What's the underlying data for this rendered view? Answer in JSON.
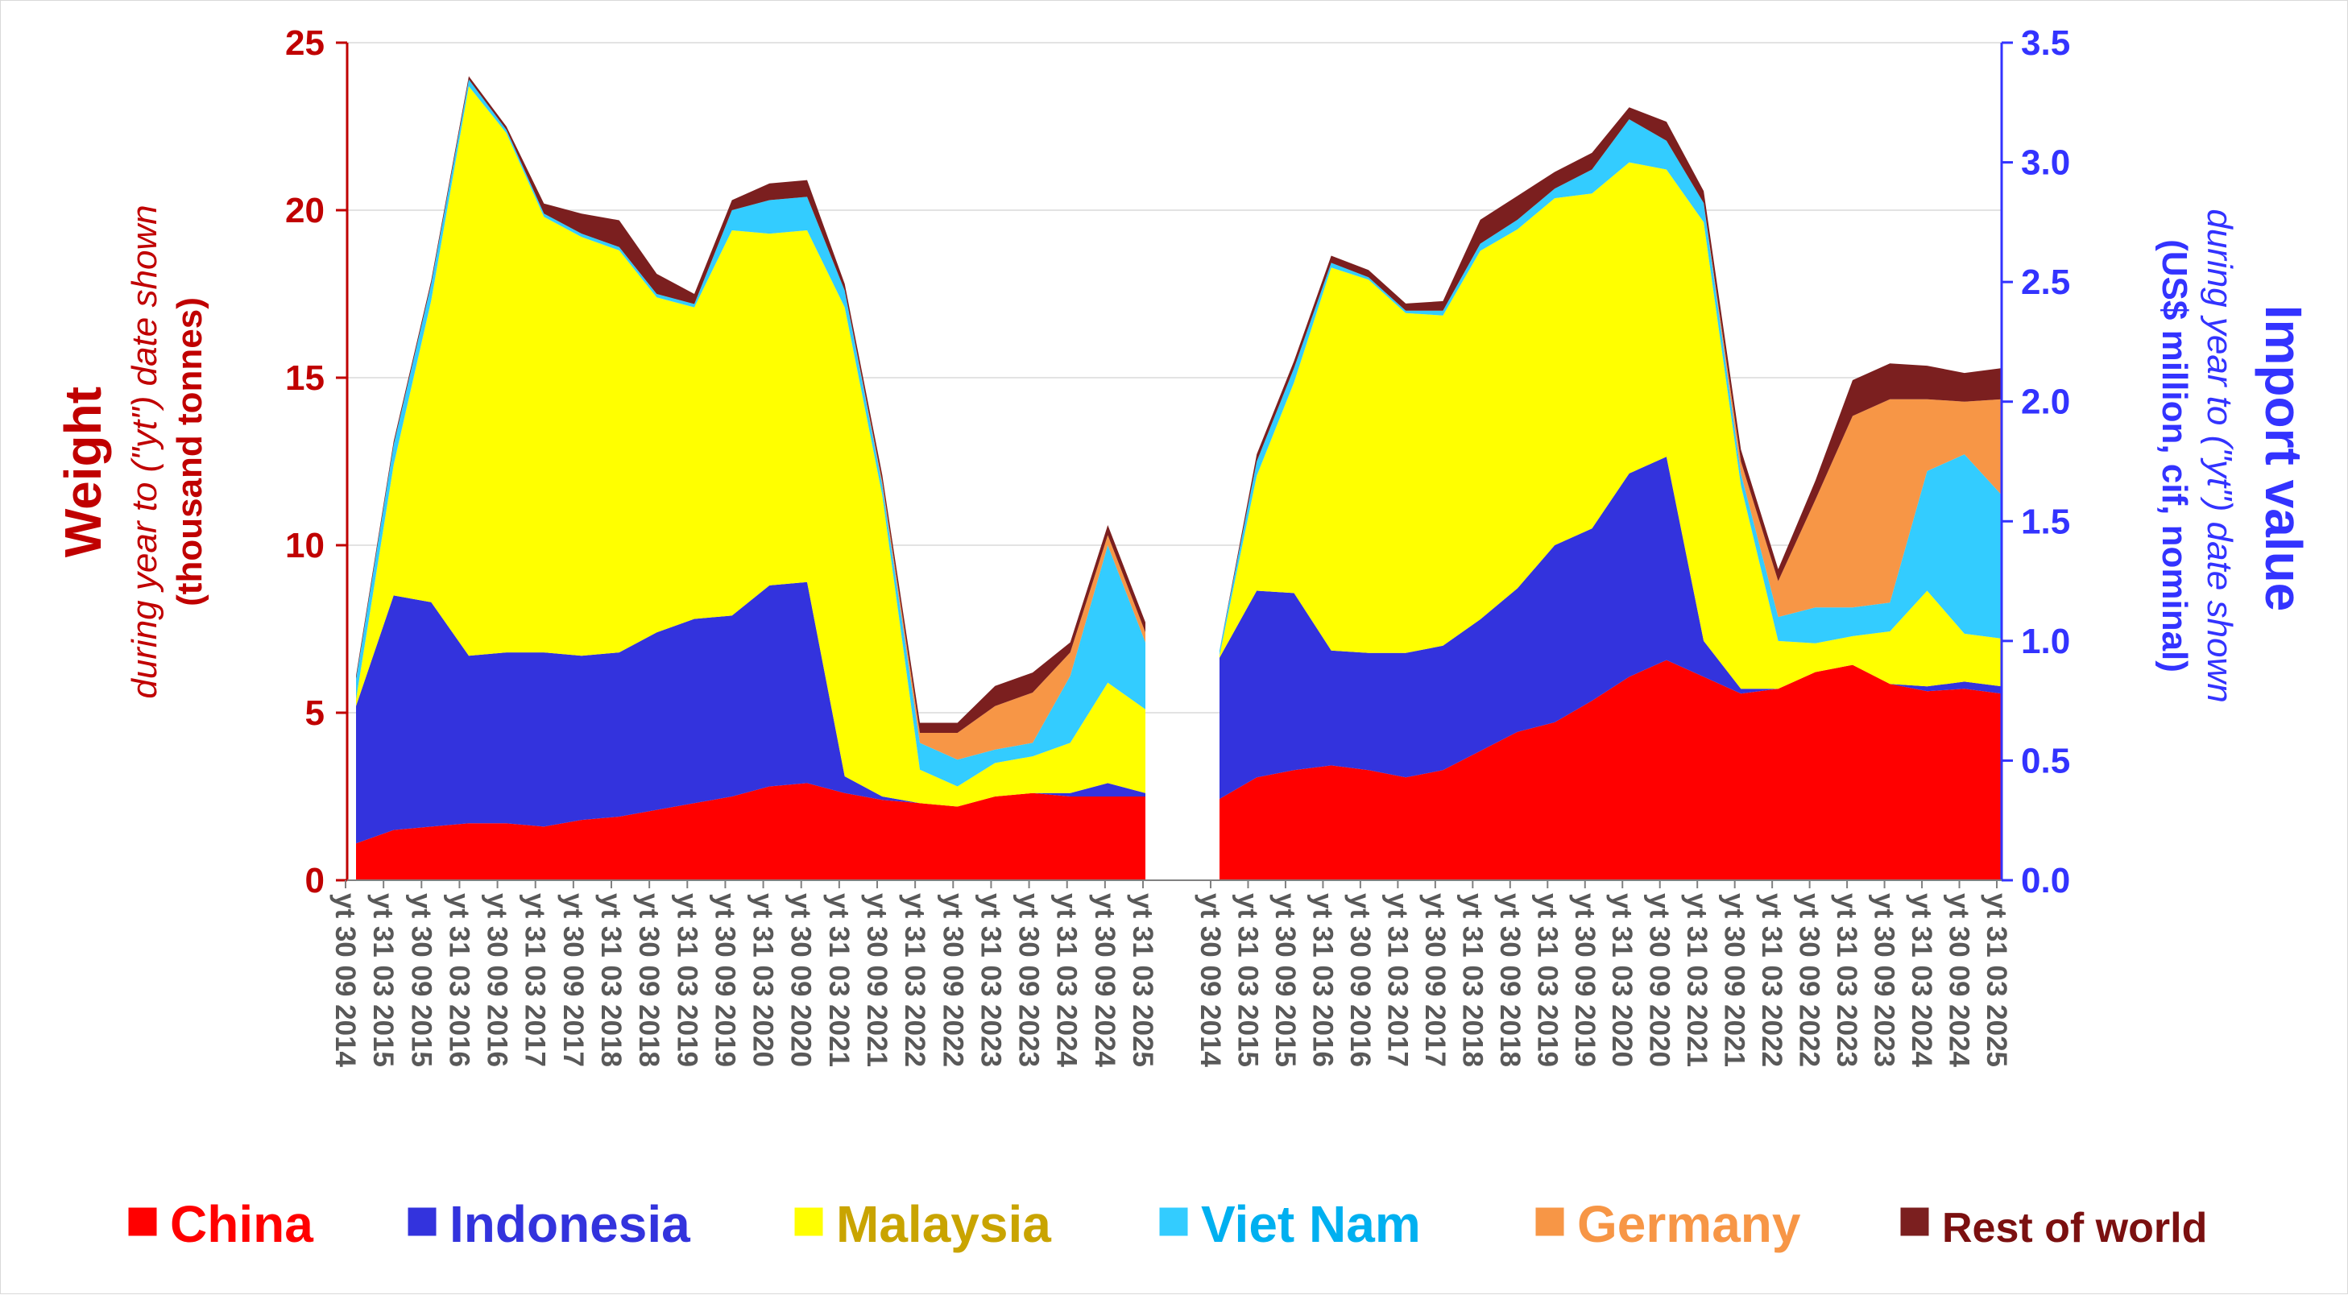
{
  "chart_data": {
    "type": "area",
    "stacked": true,
    "left_axis": {
      "title": "Weight",
      "subtitle": "during year to (\"yt\") date shown",
      "unit": "(thousand tonnes)",
      "ticks": [
        "0",
        "5",
        "10",
        "15",
        "20",
        "25"
      ],
      "range": [
        0,
        25
      ],
      "color": "#c00000"
    },
    "right_axis": {
      "title": "Import value",
      "subtitle": "during year to (\"yt\") date shown",
      "unit": "(US$ million, cif, nominal)",
      "ticks": [
        "0.0",
        "0.5",
        "1.0",
        "1.5",
        "2.0",
        "2.5",
        "3.0",
        "3.5"
      ],
      "range": [
        0,
        3.5
      ],
      "color": "#3333ff"
    },
    "x_tick_labels": [
      "yt 30 09 2014",
      "yt 31 03 2015",
      "yt 30 09 2015",
      "yt 31 03 2016",
      "yt 30 09 2016",
      "yt 31 03 2017",
      "yt 30 09 2017",
      "yt 31 03 2018",
      "yt 30 09 2018",
      "yt 31 03 2019",
      "yt 30 09 2019",
      "yt 31 03 2020",
      "yt 30 09 2020",
      "yt 31 03 2021",
      "yt 30 09 2021",
      "yt 31 03 2022",
      "yt 30 09 2022",
      "yt 31 03 2023",
      "yt 30 09 2023",
      "yt 31 03 2024",
      "yt 30 09 2024",
      "yt 31 03 2025"
    ],
    "grid": "horizontal",
    "legend_position": "bottom",
    "series": [
      {
        "name": "China",
        "color": "#ff0000",
        "legend_color": "#ff0000"
      },
      {
        "name": "Indonesia",
        "color": "#3333dd",
        "legend_color": "#3333dd"
      },
      {
        "name": "Malaysia",
        "color": "#ffff00",
        "legend_color": "#c9a400"
      },
      {
        "name": "Viet Nam",
        "color": "#33ccff",
        "legend_color": "#00b0f0"
      },
      {
        "name": "Germany",
        "color": "#f79646",
        "legend_color": "#f79646"
      },
      {
        "name": "Rest of world",
        "color": "#7b1f1f",
        "legend_color": "#7b1010"
      }
    ],
    "panels": [
      {
        "measure": "Weight (thousand tonnes)",
        "anchors": [
          {
            "x": "yt 30 09 2014",
            "totals": [
              1.1,
              4.1,
              0.2,
              0.6,
              0.0,
              0.1
            ]
          },
          {
            "x": "yt 31 03 2015",
            "totals": [
              1.5,
              7.0,
              3.9,
              0.6,
              0.0,
              0.1
            ]
          },
          {
            "x": "yt 30 09 2015",
            "totals": [
              1.6,
              6.7,
              9.0,
              0.5,
              0.0,
              0.1
            ]
          },
          {
            "x": "yt 31 03 2016",
            "totals": [
              1.7,
              5.0,
              17.0,
              0.2,
              0.0,
              0.1
            ]
          },
          {
            "x": "yt 30 09 2016",
            "totals": [
              1.7,
              5.1,
              15.5,
              0.1,
              0.0,
              0.1
            ]
          },
          {
            "x": "yt 31 03 2017",
            "totals": [
              1.6,
              5.2,
              13.0,
              0.1,
              0.0,
              0.3
            ]
          },
          {
            "x": "yt 30 09 2017",
            "totals": [
              1.8,
              4.9,
              12.5,
              0.1,
              0.0,
              0.6
            ]
          },
          {
            "x": "yt 31 03 2018",
            "totals": [
              1.9,
              4.9,
              12.0,
              0.1,
              0.0,
              0.8
            ]
          },
          {
            "x": "yt 30 09 2018",
            "totals": [
              2.1,
              5.3,
              10.0,
              0.1,
              0.0,
              0.6
            ]
          },
          {
            "x": "yt 31 03 2019",
            "totals": [
              2.3,
              5.5,
              9.3,
              0.1,
              0.0,
              0.3
            ]
          },
          {
            "x": "yt 30 09 2019",
            "totals": [
              2.5,
              5.4,
              11.5,
              0.6,
              0.0,
              0.3
            ]
          },
          {
            "x": "yt 31 03 2020",
            "totals": [
              2.8,
              6.0,
              10.5,
              1.0,
              0.0,
              0.5
            ]
          },
          {
            "x": "yt 30 09 2020",
            "totals": [
              2.9,
              6.0,
              10.5,
              1.0,
              0.0,
              0.5
            ]
          },
          {
            "x": "yt 31 03 2021",
            "totals": [
              2.6,
              0.5,
              14.0,
              0.5,
              0.0,
              0.2
            ]
          },
          {
            "x": "yt 30 09 2021",
            "totals": [
              2.4,
              0.1,
              9.0,
              0.3,
              0.1,
              0.2
            ]
          },
          {
            "x": "yt 31 03 2022",
            "totals": [
              2.3,
              0.0,
              1.0,
              0.8,
              0.3,
              0.3
            ]
          },
          {
            "x": "yt 30 09 2022",
            "totals": [
              2.2,
              0.0,
              0.6,
              0.8,
              0.8,
              0.3
            ]
          },
          {
            "x": "yt 31 03 2023",
            "totals": [
              2.5,
              0.0,
              1.0,
              0.4,
              1.3,
              0.6
            ]
          },
          {
            "x": "yt 30 09 2023",
            "totals": [
              2.6,
              0.0,
              1.1,
              0.4,
              1.5,
              0.6
            ]
          },
          {
            "x": "yt 31 03 2024",
            "totals": [
              2.5,
              0.1,
              1.5,
              2.0,
              0.7,
              0.3
            ]
          },
          {
            "x": "yt 30 09 2024",
            "totals": [
              2.5,
              0.4,
              3.0,
              4.1,
              0.3,
              0.3
            ]
          },
          {
            "x": "yt 31 03 2025",
            "totals": [
              2.5,
              0.1,
              2.5,
              2.0,
              0.3,
              0.3
            ]
          }
        ]
      },
      {
        "measure": "Import value (US$ million, cif, nominal)",
        "anchors": [
          {
            "x": "yt 30 09 2014",
            "totals": [
              0.34,
              0.59,
              0.01,
              0.02,
              0.0,
              0.0
            ]
          },
          {
            "x": "yt 31 03 2015",
            "totals": [
              0.43,
              0.78,
              0.48,
              0.06,
              0.0,
              0.03
            ]
          },
          {
            "x": "yt 30 09 2015",
            "totals": [
              0.46,
              0.74,
              0.88,
              0.06,
              0.0,
              0.03
            ]
          },
          {
            "x": "yt 31 03 2016",
            "totals": [
              0.48,
              0.48,
              1.6,
              0.02,
              0.0,
              0.03
            ]
          },
          {
            "x": "yt 30 09 2016",
            "totals": [
              0.46,
              0.49,
              1.56,
              0.01,
              0.0,
              0.03
            ]
          },
          {
            "x": "yt 31 03 2017",
            "totals": [
              0.43,
              0.52,
              1.42,
              0.01,
              0.0,
              0.03
            ]
          },
          {
            "x": "yt 30 09 2017",
            "totals": [
              0.46,
              0.52,
              1.38,
              0.02,
              0.0,
              0.04
            ]
          },
          {
            "x": "yt 31 03 2018",
            "totals": [
              0.54,
              0.55,
              1.54,
              0.03,
              0.0,
              0.1
            ]
          },
          {
            "x": "yt 30 09 2018",
            "totals": [
              0.62,
              0.6,
              1.5,
              0.04,
              0.0,
              0.1
            ]
          },
          {
            "x": "yt 31 03 2019",
            "totals": [
              0.66,
              0.74,
              1.45,
              0.04,
              0.0,
              0.07
            ]
          },
          {
            "x": "yt 30 09 2019",
            "totals": [
              0.75,
              0.72,
              1.4,
              0.1,
              0.0,
              0.07
            ]
          },
          {
            "x": "yt 31 03 2020",
            "totals": [
              0.85,
              0.85,
              1.3,
              0.18,
              0.0,
              0.05
            ]
          },
          {
            "x": "yt 30 09 2020",
            "totals": [
              0.92,
              0.85,
              1.2,
              0.12,
              0.0,
              0.08
            ]
          },
          {
            "x": "yt 31 03 2021",
            "totals": [
              0.85,
              0.15,
              1.75,
              0.08,
              0.0,
              0.05
            ]
          },
          {
            "x": "yt 30 09 2021",
            "totals": [
              0.78,
              0.02,
              0.85,
              0.05,
              0.05,
              0.05
            ]
          },
          {
            "x": "yt 31 03 2022",
            "totals": [
              0.8,
              0.0,
              0.2,
              0.1,
              0.15,
              0.05
            ]
          },
          {
            "x": "yt 30 09 2022",
            "totals": [
              0.87,
              0.0,
              0.12,
              0.15,
              0.45,
              0.08
            ]
          },
          {
            "x": "yt 31 03 2023",
            "totals": [
              0.9,
              0.0,
              0.12,
              0.12,
              0.8,
              0.15
            ]
          },
          {
            "x": "yt 30 09 2023",
            "totals": [
              0.82,
              0.0,
              0.22,
              0.12,
              0.85,
              0.15
            ]
          },
          {
            "x": "yt 31 03 2024",
            "totals": [
              0.79,
              0.02,
              0.4,
              0.5,
              0.3,
              0.14
            ]
          },
          {
            "x": "yt 30 09 2024",
            "totals": [
              0.8,
              0.03,
              0.2,
              0.75,
              0.22,
              0.12
            ]
          },
          {
            "x": "yt 31 03 2025",
            "totals": [
              0.78,
              0.03,
              0.2,
              0.6,
              0.4,
              0.13
            ]
          }
        ]
      }
    ]
  }
}
